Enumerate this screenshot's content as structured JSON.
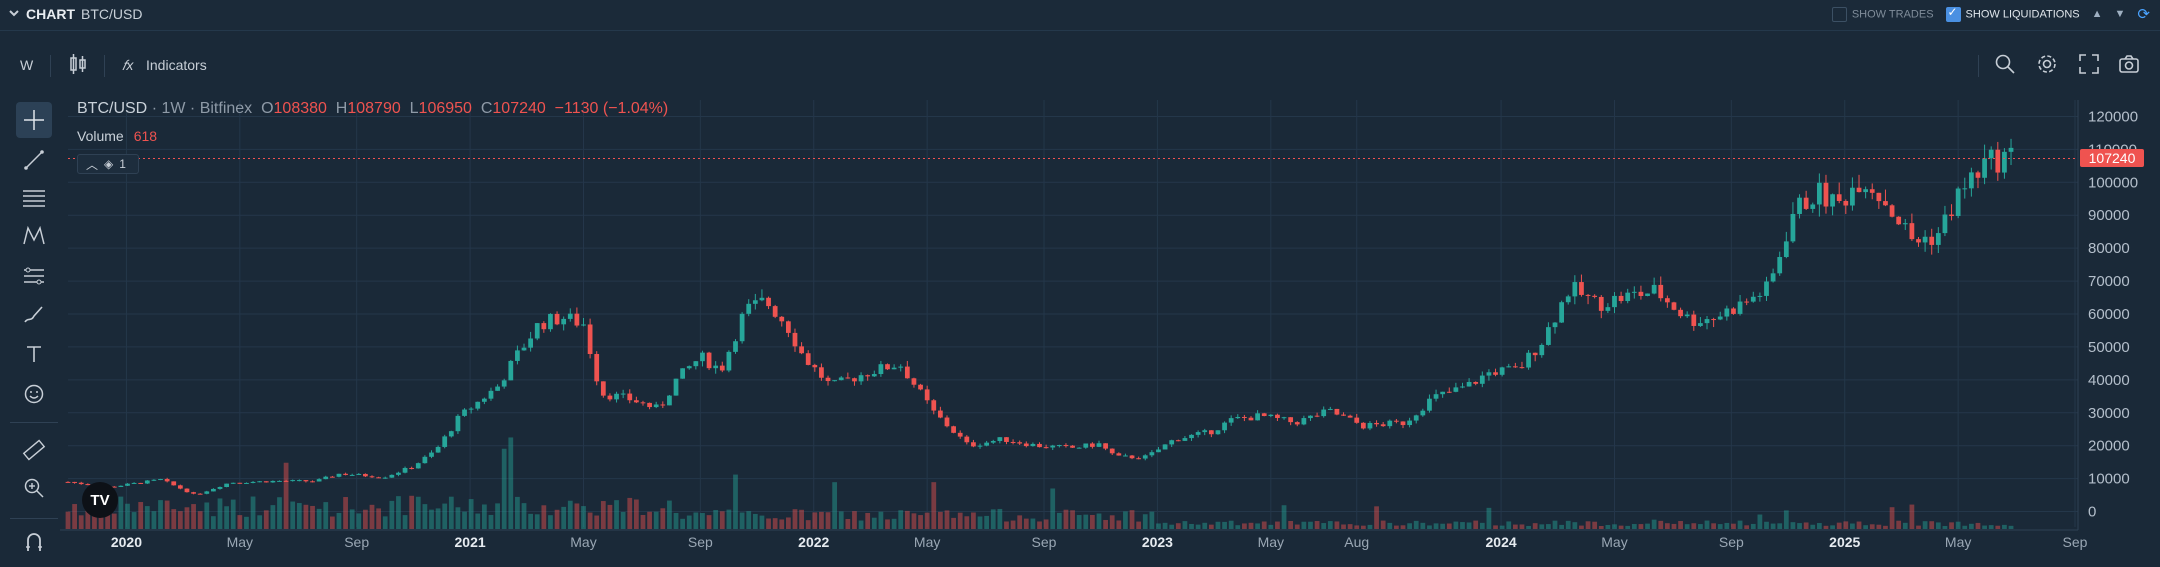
{
  "header": {
    "title": "CHART",
    "pair": "BTC/USD",
    "show_trades_label": "SHOW TRADES",
    "show_trades_checked": false,
    "show_liquidations_label": "SHOW LIQUIDATIONS",
    "show_liquidations_checked": true
  },
  "toolbar": {
    "interval": "W",
    "indicators_label": "Indicators"
  },
  "legend": {
    "symbol": "BTC/USD",
    "interval": "1W",
    "exchange": "Bitfinex",
    "o_label": "O",
    "o": "108380",
    "h_label": "H",
    "h": "108790",
    "l_label": "L",
    "l": "106950",
    "c_label": "C",
    "c": "107240",
    "change": "−1130 (−1.04%)",
    "volume_label": "Volume",
    "volume_value": "618",
    "collapse_count": "1"
  },
  "colors": {
    "up": "#26a69a",
    "down": "#ef5350",
    "background": "#1a2938",
    "grid": "#24374a",
    "price_line": "#ef5350"
  },
  "icons": {
    "left_tools": [
      "crosshair-icon",
      "trend-line-icon",
      "fib-retracement-icon",
      "pattern-icon",
      "measure-projection-icon",
      "brush-icon",
      "text-icon",
      "emoji-icon",
      "ruler-icon",
      "zoom-in-icon",
      "magnet-icon"
    ],
    "top_right": [
      "search-icon",
      "settings-icon",
      "fullscreen-icon",
      "camera-icon"
    ]
  },
  "chart_data": {
    "type": "candlestick",
    "symbol": "BTC/USD",
    "interval": "1W",
    "last_price": "107240",
    "ylim": [
      -5000,
      125000
    ],
    "y_ticks": [
      0,
      10000,
      20000,
      30000,
      40000,
      50000,
      60000,
      70000,
      80000,
      90000,
      100000,
      110000,
      120000
    ],
    "x_ticks": [
      {
        "t": 2020.0,
        "label": "2020",
        "bold": true
      },
      {
        "t": 2020.33,
        "label": "May",
        "bold": false
      },
      {
        "t": 2020.67,
        "label": "Sep",
        "bold": false
      },
      {
        "t": 2021.0,
        "label": "2021",
        "bold": true
      },
      {
        "t": 2021.33,
        "label": "May",
        "bold": false
      },
      {
        "t": 2021.67,
        "label": "Sep",
        "bold": false
      },
      {
        "t": 2022.0,
        "label": "2022",
        "bold": true
      },
      {
        "t": 2022.33,
        "label": "May",
        "bold": false
      },
      {
        "t": 2022.67,
        "label": "Sep",
        "bold": false
      },
      {
        "t": 2023.0,
        "label": "2023",
        "bold": true
      },
      {
        "t": 2023.33,
        "label": "May",
        "bold": false
      },
      {
        "t": 2023.58,
        "label": "Aug",
        "bold": false
      },
      {
        "t": 2024.0,
        "label": "2024",
        "bold": true
      },
      {
        "t": 2024.33,
        "label": "May",
        "bold": false
      },
      {
        "t": 2024.67,
        "label": "Sep",
        "bold": false
      },
      {
        "t": 2025.0,
        "label": "2025",
        "bold": true
      },
      {
        "t": 2025.33,
        "label": "May",
        "bold": false
      },
      {
        "t": 2025.67,
        "label": "Sep",
        "bold": false
      }
    ],
    "x_range": [
      2019.83,
      2025.67
    ],
    "price_path": [
      [
        2019.83,
        9000
      ],
      [
        2019.95,
        7400
      ],
      [
        2020.1,
        9700
      ],
      [
        2020.2,
        5000
      ],
      [
        2020.3,
        8800
      ],
      [
        2020.45,
        9300
      ],
      [
        2020.55,
        9200
      ],
      [
        2020.62,
        11500
      ],
      [
        2020.75,
        10500
      ],
      [
        2020.83,
        13500
      ],
      [
        2020.9,
        18500
      ],
      [
        2020.97,
        28900
      ],
      [
        2021.08,
        38000
      ],
      [
        2021.14,
        48000
      ],
      [
        2021.2,
        57000
      ],
      [
        2021.27,
        59000
      ],
      [
        2021.33,
        57000
      ],
      [
        2021.38,
        36000
      ],
      [
        2021.47,
        34000
      ],
      [
        2021.55,
        31000
      ],
      [
        2021.6,
        40000
      ],
      [
        2021.67,
        47000
      ],
      [
        2021.73,
        43000
      ],
      [
        2021.8,
        61000
      ],
      [
        2021.86,
        64000
      ],
      [
        2021.92,
        57000
      ],
      [
        2021.97,
        47000
      ],
      [
        2022.05,
        38000
      ],
      [
        2022.15,
        42000
      ],
      [
        2022.25,
        45000
      ],
      [
        2022.35,
        30000
      ],
      [
        2022.45,
        20000
      ],
      [
        2022.55,
        22000
      ],
      [
        2022.65,
        20000
      ],
      [
        2022.75,
        19300
      ],
      [
        2022.83,
        20500
      ],
      [
        2022.88,
        16500
      ],
      [
        2022.97,
        16600
      ],
      [
        2023.05,
        22000
      ],
      [
        2023.15,
        24000
      ],
      [
        2023.22,
        28000
      ],
      [
        2023.3,
        29000
      ],
      [
        2023.4,
        27000
      ],
      [
        2023.5,
        30500
      ],
      [
        2023.6,
        26000
      ],
      [
        2023.72,
        27000
      ],
      [
        2023.8,
        34500
      ],
      [
        2023.9,
        38000
      ],
      [
        2023.97,
        42500
      ],
      [
        2024.05,
        43000
      ],
      [
        2024.12,
        52000
      ],
      [
        2024.2,
        68000
      ],
      [
        2024.28,
        63000
      ],
      [
        2024.35,
        65000
      ],
      [
        2024.45,
        67000
      ],
      [
        2024.55,
        58000
      ],
      [
        2024.62,
        59000
      ],
      [
        2024.7,
        63000
      ],
      [
        2024.78,
        68000
      ],
      [
        2024.85,
        91000
      ],
      [
        2024.92,
        97000
      ],
      [
        2024.98,
        93000
      ],
      [
        2025.05,
        102000
      ],
      [
        2025.12,
        94000
      ],
      [
        2025.2,
        82000
      ],
      [
        2025.27,
        84000
      ],
      [
        2025.33,
        96000
      ],
      [
        2025.4,
        105000
      ],
      [
        2025.47,
        108000
      ],
      [
        2025.5,
        107240
      ]
    ]
  }
}
